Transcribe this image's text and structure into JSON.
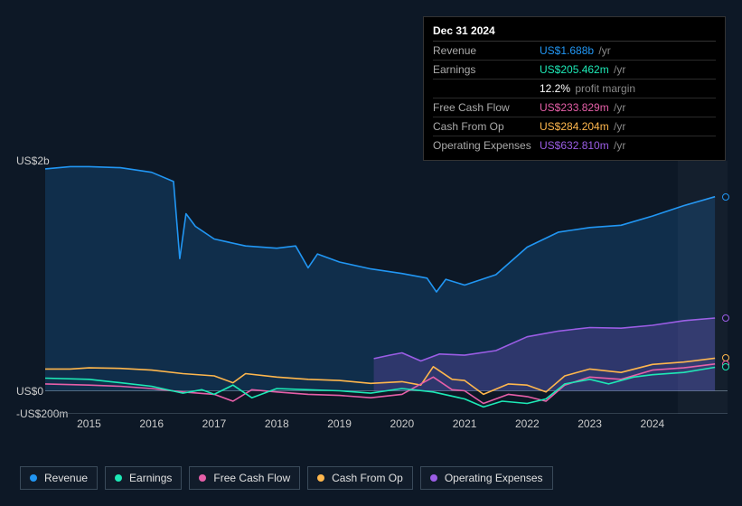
{
  "tooltip": {
    "title": "Dec 31 2024",
    "rows": [
      {
        "label": "Revenue",
        "value": "US$1.688b",
        "unit": "/yr",
        "color": "#2196f3"
      },
      {
        "label": "Earnings",
        "value": "US$205.462m",
        "unit": "/yr",
        "color": "#1de9b6"
      },
      {
        "label": "",
        "value": "12.2%",
        "unit": "profit margin",
        "color": "#ffffff"
      },
      {
        "label": "Free Cash Flow",
        "value": "US$233.829m",
        "unit": "/yr",
        "color": "#e65fa8"
      },
      {
        "label": "Cash From Op",
        "value": "US$284.204m",
        "unit": "/yr",
        "color": "#ffb74d"
      },
      {
        "label": "Operating Expenses",
        "value": "US$632.810m",
        "unit": "/yr",
        "color": "#9b5de5"
      }
    ]
  },
  "chart": {
    "type": "area-line",
    "background": "#0d1826",
    "ylim": [
      -200,
      2000
    ],
    "yticks": [
      {
        "v": 2000,
        "label": "US$2b"
      },
      {
        "v": 0,
        "label": "US$0"
      },
      {
        "v": -200,
        "label": "-US$200m"
      }
    ],
    "xlim": [
      2014.3,
      2025.2
    ],
    "xticks": [
      2015,
      2016,
      2017,
      2018,
      2019,
      2020,
      2021,
      2022,
      2023,
      2024
    ],
    "future_shade_start": 2024.4,
    "grid_color": "#2a3a4a",
    "axis_color": "#556677",
    "series": [
      {
        "name": "Revenue",
        "color": "#2196f3",
        "fill": true,
        "fill_opacity": 0.18,
        "points": [
          [
            2014.3,
            1930
          ],
          [
            2014.7,
            1950
          ],
          [
            2015.0,
            1950
          ],
          [
            2015.5,
            1940
          ],
          [
            2016.0,
            1900
          ],
          [
            2016.35,
            1820
          ],
          [
            2016.45,
            1150
          ],
          [
            2016.55,
            1540
          ],
          [
            2016.7,
            1430
          ],
          [
            2017.0,
            1320
          ],
          [
            2017.5,
            1260
          ],
          [
            2018.0,
            1240
          ],
          [
            2018.3,
            1260
          ],
          [
            2018.5,
            1070
          ],
          [
            2018.65,
            1190
          ],
          [
            2019.0,
            1120
          ],
          [
            2019.5,
            1060
          ],
          [
            2020.0,
            1020
          ],
          [
            2020.4,
            980
          ],
          [
            2020.55,
            860
          ],
          [
            2020.7,
            970
          ],
          [
            2021.0,
            920
          ],
          [
            2021.5,
            1010
          ],
          [
            2022.0,
            1250
          ],
          [
            2022.5,
            1380
          ],
          [
            2023.0,
            1420
          ],
          [
            2023.5,
            1440
          ],
          [
            2024.0,
            1520
          ],
          [
            2024.5,
            1610
          ],
          [
            2025.0,
            1688
          ]
        ]
      },
      {
        "name": "Operating Expenses",
        "color": "#9b5de5",
        "fill": true,
        "fill_opacity": 0.22,
        "start": 2019.55,
        "points": [
          [
            2019.55,
            280
          ],
          [
            2019.8,
            310
          ],
          [
            2020.0,
            330
          ],
          [
            2020.3,
            260
          ],
          [
            2020.6,
            320
          ],
          [
            2021.0,
            310
          ],
          [
            2021.5,
            350
          ],
          [
            2022.0,
            470
          ],
          [
            2022.5,
            520
          ],
          [
            2023.0,
            550
          ],
          [
            2023.5,
            545
          ],
          [
            2024.0,
            570
          ],
          [
            2024.5,
            610
          ],
          [
            2025.0,
            633
          ]
        ]
      },
      {
        "name": "Cash From Op",
        "color": "#ffb74d",
        "fill": false,
        "points": [
          [
            2014.3,
            190
          ],
          [
            2014.7,
            190
          ],
          [
            2015.0,
            200
          ],
          [
            2015.5,
            195
          ],
          [
            2016.0,
            180
          ],
          [
            2016.5,
            150
          ],
          [
            2017.0,
            130
          ],
          [
            2017.3,
            70
          ],
          [
            2017.5,
            150
          ],
          [
            2018.0,
            120
          ],
          [
            2018.5,
            100
          ],
          [
            2019.0,
            90
          ],
          [
            2019.5,
            65
          ],
          [
            2020.0,
            80
          ],
          [
            2020.3,
            50
          ],
          [
            2020.5,
            210
          ],
          [
            2020.8,
            100
          ],
          [
            2021.0,
            90
          ],
          [
            2021.3,
            -30
          ],
          [
            2021.7,
            60
          ],
          [
            2022.0,
            50
          ],
          [
            2022.3,
            -10
          ],
          [
            2022.6,
            130
          ],
          [
            2023.0,
            190
          ],
          [
            2023.5,
            160
          ],
          [
            2024.0,
            230
          ],
          [
            2024.5,
            250
          ],
          [
            2025.0,
            284
          ]
        ]
      },
      {
        "name": "Free Cash Flow",
        "color": "#e65fa8",
        "fill": false,
        "points": [
          [
            2014.3,
            60
          ],
          [
            2015.0,
            50
          ],
          [
            2015.5,
            40
          ],
          [
            2016.0,
            20
          ],
          [
            2016.5,
            -10
          ],
          [
            2017.0,
            -30
          ],
          [
            2017.3,
            -90
          ],
          [
            2017.6,
            10
          ],
          [
            2018.0,
            -10
          ],
          [
            2018.5,
            -30
          ],
          [
            2019.0,
            -40
          ],
          [
            2019.5,
            -60
          ],
          [
            2020.0,
            -30
          ],
          [
            2020.5,
            120
          ],
          [
            2020.8,
            10
          ],
          [
            2021.0,
            0
          ],
          [
            2021.3,
            -110
          ],
          [
            2021.7,
            -30
          ],
          [
            2022.0,
            -50
          ],
          [
            2022.3,
            -90
          ],
          [
            2022.6,
            50
          ],
          [
            2023.0,
            120
          ],
          [
            2023.5,
            100
          ],
          [
            2024.0,
            180
          ],
          [
            2024.5,
            200
          ],
          [
            2025.0,
            234
          ]
        ]
      },
      {
        "name": "Earnings",
        "color": "#1de9b6",
        "fill": false,
        "points": [
          [
            2014.3,
            110
          ],
          [
            2015.0,
            100
          ],
          [
            2015.5,
            70
          ],
          [
            2016.0,
            40
          ],
          [
            2016.5,
            -20
          ],
          [
            2016.8,
            10
          ],
          [
            2017.0,
            -30
          ],
          [
            2017.3,
            50
          ],
          [
            2017.6,
            -60
          ],
          [
            2018.0,
            20
          ],
          [
            2018.5,
            10
          ],
          [
            2019.0,
            0
          ],
          [
            2019.5,
            -20
          ],
          [
            2020.0,
            20
          ],
          [
            2020.5,
            -10
          ],
          [
            2021.0,
            -70
          ],
          [
            2021.3,
            -140
          ],
          [
            2021.6,
            -90
          ],
          [
            2022.0,
            -110
          ],
          [
            2022.3,
            -70
          ],
          [
            2022.6,
            60
          ],
          [
            2023.0,
            100
          ],
          [
            2023.3,
            60
          ],
          [
            2023.7,
            120
          ],
          [
            2024.0,
            140
          ],
          [
            2024.5,
            160
          ],
          [
            2025.0,
            205
          ]
        ]
      }
    ],
    "end_markers": [
      {
        "color": "#2196f3",
        "y": 1688
      },
      {
        "color": "#9b5de5",
        "y": 633
      },
      {
        "color": "#ffb74d",
        "y": 284
      },
      {
        "color": "#e65fa8",
        "y": 234
      },
      {
        "color": "#1de9b6",
        "y": 205
      }
    ]
  },
  "legend": [
    {
      "label": "Revenue",
      "name": "revenue",
      "color": "#2196f3"
    },
    {
      "label": "Earnings",
      "name": "earnings",
      "color": "#1de9b6"
    },
    {
      "label": "Free Cash Flow",
      "name": "free-cash-flow",
      "color": "#e65fa8"
    },
    {
      "label": "Cash From Op",
      "name": "cash-from-op",
      "color": "#ffb74d"
    },
    {
      "label": "Operating Expenses",
      "name": "operating-expenses",
      "color": "#9b5de5"
    }
  ]
}
